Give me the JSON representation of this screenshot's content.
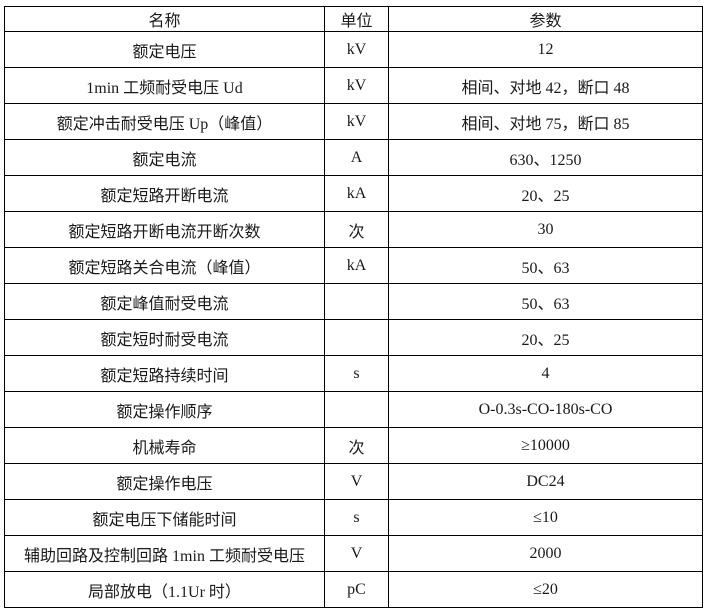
{
  "table": {
    "border_color": "#000000",
    "text_color": "#1a1a1a",
    "background_color": "#ffffff",
    "headers": {
      "name": "名称",
      "unit": "单位",
      "value": "参数"
    },
    "rows": [
      {
        "name": "额定电压",
        "unit": "kV",
        "value": "12"
      },
      {
        "name": "1min 工频耐受电压 Ud",
        "unit": "kV",
        "value": "相间、对地 42，断口 48"
      },
      {
        "name": "额定冲击耐受电压 Up（峰值）",
        "unit": "kV",
        "value": "相间、对地 75，断口 85"
      },
      {
        "name": "额定电流",
        "unit": "A",
        "value": "630、1250"
      },
      {
        "name": "额定短路开断电流",
        "unit": "kA",
        "value": "20、25"
      },
      {
        "name": "额定短路开断电流开断次数",
        "unit": "次",
        "value": "30"
      },
      {
        "name": "额定短路关合电流（峰值）",
        "unit": "kA",
        "value": "50、63"
      },
      {
        "name": "额定峰值耐受电流",
        "unit": "",
        "value": "50、63"
      },
      {
        "name": "额定短时耐受电流",
        "unit": "",
        "value": "20、25"
      },
      {
        "name": "额定短路持续时间",
        "unit": "s",
        "value": "4"
      },
      {
        "name": "额定操作顺序",
        "unit": "",
        "value": "O-0.3s-CO-180s-CO"
      },
      {
        "name": "机械寿命",
        "unit": "次",
        "value": "≥10000"
      },
      {
        "name": "额定操作电压",
        "unit": "V",
        "value": "DC24"
      },
      {
        "name": "额定电压下储能时间",
        "unit": "s",
        "value": "≤10"
      },
      {
        "name": "辅助回路及控制回路 1min 工频耐受电压",
        "unit": "V",
        "value": "2000"
      },
      {
        "name": "局部放电（1.1Ur 时）",
        "unit": "pC",
        "value": "≤20"
      }
    ]
  }
}
